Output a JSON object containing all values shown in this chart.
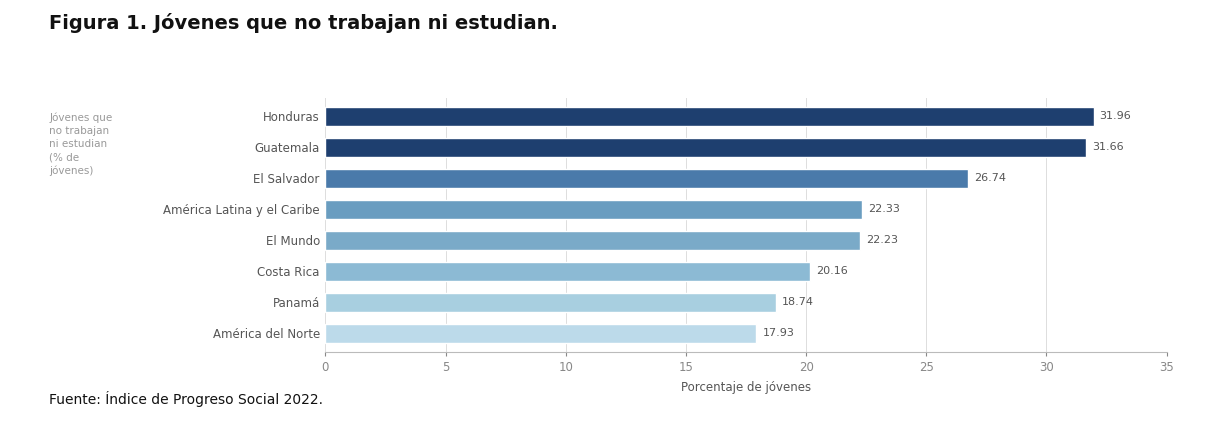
{
  "title": "Figura 1. Jóvenes que no trabajan ni estudian.",
  "categories": [
    "Honduras",
    "Guatemala",
    "El Salvador",
    "América Latina y el Caribe",
    "El Mundo",
    "Costa Rica",
    "Panamá",
    "América del Norte"
  ],
  "values": [
    31.96,
    31.66,
    26.74,
    22.33,
    22.23,
    20.16,
    18.74,
    17.93
  ],
  "bar_colors": [
    "#1e3f6f",
    "#1e3f6f",
    "#4a7aaa",
    "#6a9dc0",
    "#7aaac8",
    "#8cbad4",
    "#a8cfe0",
    "#bcdaea"
  ],
  "ylabel_text": "Jóvenes que\nno trabajan\nni estudian\n(% de\njóvenes)",
  "xlabel_text": "Porcentaje de jóvenes",
  "xlim": [
    0,
    35
  ],
  "xticks": [
    0,
    5,
    10,
    15,
    20,
    25,
    30,
    35
  ],
  "value_labels": [
    "31.96",
    "31.66",
    "26.74",
    "22.33",
    "22.23",
    "20.16",
    "18.74",
    "17.93"
  ],
  "source_text": "Fuente: Índice de Progreso Social 2022.",
  "background_color": "#ffffff",
  "bar_height": 0.62,
  "title_fontsize": 14,
  "label_fontsize": 8.5,
  "tick_fontsize": 8.5,
  "value_fontsize": 8,
  "ylabel_fontsize": 7.5,
  "source_fontsize": 10
}
